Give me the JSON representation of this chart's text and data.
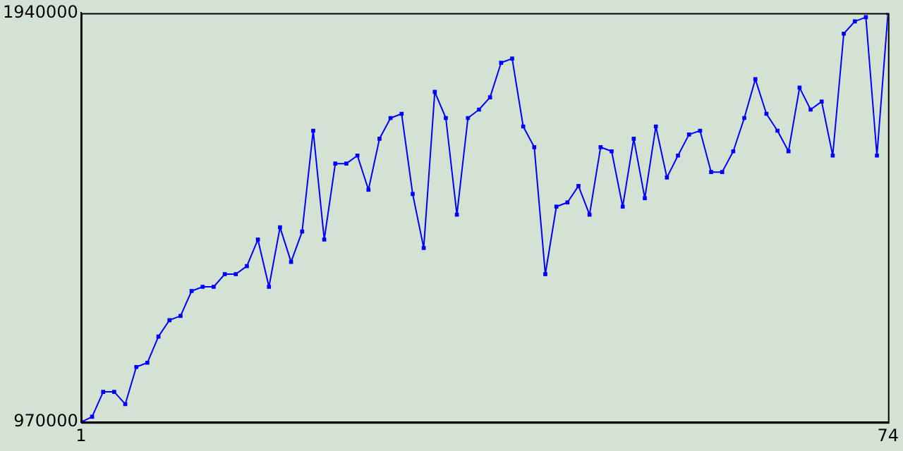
{
  "chart_data": {
    "type": "line",
    "x": [
      1,
      2,
      3,
      4,
      5,
      6,
      7,
      8,
      9,
      10,
      11,
      12,
      13,
      14,
      15,
      16,
      17,
      18,
      19,
      20,
      21,
      22,
      23,
      24,
      25,
      26,
      27,
      28,
      29,
      30,
      31,
      32,
      33,
      34,
      35,
      36,
      37,
      38,
      39,
      40,
      41,
      42,
      43,
      44,
      45,
      46,
      47,
      48,
      49,
      50,
      51,
      52,
      53,
      54,
      55,
      56,
      57,
      58,
      59,
      60,
      61,
      62,
      63,
      64,
      65,
      66,
      67,
      68,
      69,
      70,
      71,
      72,
      73,
      74
    ],
    "series": [
      {
        "color": "#0000ff",
        "values": [
          970000,
          983000,
          1042000,
          1042000,
          1013000,
          1101000,
          1111000,
          1173000,
          1212000,
          1222000,
          1281000,
          1291000,
          1291000,
          1321000,
          1321000,
          1340000,
          1403000,
          1291000,
          1432000,
          1350000,
          1422000,
          1661000,
          1403000,
          1583000,
          1583000,
          1602000,
          1521000,
          1642000,
          1691000,
          1701000,
          1511000,
          1383000,
          1753000,
          1691000,
          1462000,
          1691000,
          1711000,
          1740000,
          1822000,
          1832000,
          1671000,
          1622000,
          1321000,
          1481000,
          1491000,
          1530000,
          1462000,
          1622000,
          1612000,
          1481000,
          1642000,
          1501000,
          1671000,
          1550000,
          1602000,
          1652000,
          1661000,
          1563000,
          1563000,
          1612000,
          1691000,
          1783000,
          1701000,
          1661000,
          1612000,
          1763000,
          1711000,
          1730000,
          1602000,
          1891000,
          1920000,
          1930000,
          1602000,
          1940000
        ]
      }
    ],
    "xlim": [
      1,
      74
    ],
    "xticks": [
      1,
      74
    ],
    "ylim": [
      970000,
      1940000
    ],
    "yticks": [
      970000,
      1940000
    ],
    "grid": false,
    "legend": false,
    "marker": "square",
    "line_style": "solid"
  }
}
